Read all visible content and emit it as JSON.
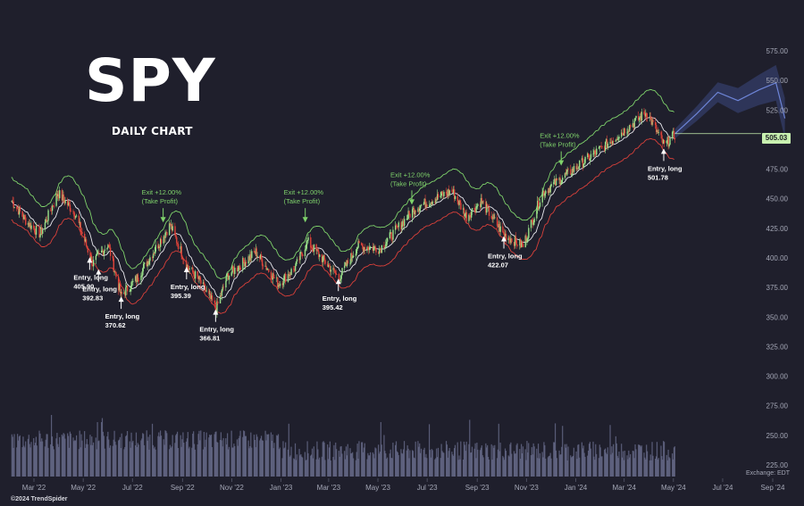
{
  "header": {
    "title": "SPY",
    "subtitle": "DAILY CHART"
  },
  "footer": {
    "copyright": "©2024 TrendSpider",
    "exchange": "Exchange: EDT"
  },
  "price_tag": "505.03",
  "colors": {
    "background": "#1f1f2c",
    "up": "#9be28a",
    "down": "#e0443a",
    "upper_band": "#7fd36b",
    "lower_band": "#d8403a",
    "mid_line": "#e8e8ee",
    "projection": "#4a5fb0",
    "volume": "#6e7191",
    "entry_label": "#ffffff",
    "exit_label": "#7fd36b"
  },
  "chart_data": {
    "type": "candlestick",
    "y_axis_ticks": [
      "575.00",
      "550.00",
      "525.00",
      "500.00",
      "475.00",
      "450.00",
      "425.00",
      "400.00",
      "375.00",
      "350.00",
      "325.00",
      "300.00",
      "275.00",
      "250.00",
      "225.00"
    ],
    "x_axis_ticks": [
      "Mar '22",
      "May '22",
      "Jul '22",
      "Sep '22",
      "Nov '22",
      "Jan '23",
      "Mar '23",
      "May '23",
      "Jul '23",
      "Sep '23",
      "Nov '23",
      "Jan '24",
      "Mar '24",
      "May '24",
      "Jul '24",
      "Sep '24"
    ],
    "price_path": [
      {
        "date": "2022-02-01",
        "close": 448
      },
      {
        "date": "2022-02-20",
        "close": 430
      },
      {
        "date": "2022-03-08",
        "close": 420
      },
      {
        "date": "2022-03-30",
        "close": 455
      },
      {
        "date": "2022-04-20",
        "close": 438
      },
      {
        "date": "2022-05-12",
        "close": 395
      },
      {
        "date": "2022-05-31",
        "close": 412
      },
      {
        "date": "2022-06-16",
        "close": 368
      },
      {
        "date": "2022-07-05",
        "close": 382
      },
      {
        "date": "2022-08-16",
        "close": 428
      },
      {
        "date": "2022-09-06",
        "close": 393
      },
      {
        "date": "2022-09-20",
        "close": 382
      },
      {
        "date": "2022-10-12",
        "close": 357
      },
      {
        "date": "2022-10-26",
        "close": 385
      },
      {
        "date": "2022-11-30",
        "close": 405
      },
      {
        "date": "2022-12-28",
        "close": 378
      },
      {
        "date": "2023-01-18",
        "close": 392
      },
      {
        "date": "2023-02-02",
        "close": 414
      },
      {
        "date": "2023-03-13",
        "close": 383
      },
      {
        "date": "2023-04-05",
        "close": 410
      },
      {
        "date": "2023-05-03",
        "close": 408
      },
      {
        "date": "2023-06-15",
        "close": 442
      },
      {
        "date": "2023-07-31",
        "close": 457
      },
      {
        "date": "2023-08-18",
        "close": 435
      },
      {
        "date": "2023-09-05",
        "close": 448
      },
      {
        "date": "2023-10-03",
        "close": 420
      },
      {
        "date": "2023-10-27",
        "close": 410
      },
      {
        "date": "2023-11-20",
        "close": 455
      },
      {
        "date": "2023-12-29",
        "close": 475
      },
      {
        "date": "2024-02-15",
        "close": 500
      },
      {
        "date": "2024-03-28",
        "close": 523
      },
      {
        "date": "2024-04-19",
        "close": 495
      },
      {
        "date": "2024-05-03",
        "close": 505
      }
    ],
    "projection_path": [
      {
        "date": "2024-05-03",
        "close": 505
      },
      {
        "date": "2024-05-30",
        "close": 522
      },
      {
        "date": "2024-06-25",
        "close": 540
      },
      {
        "date": "2024-07-20",
        "close": 533
      },
      {
        "date": "2024-08-15",
        "close": 542
      },
      {
        "date": "2024-09-05",
        "close": 548
      },
      {
        "date": "2024-09-16",
        "close": 518
      }
    ],
    "annotations": [
      {
        "kind": "entry",
        "label": "Entry, long",
        "value": "405.90",
        "date": "2022-05-09",
        "price": 402
      },
      {
        "kind": "entry",
        "label": "Entry, long",
        "value": "392.83",
        "date": "2022-05-20",
        "price": 392
      },
      {
        "kind": "entry",
        "label": "Entry, long",
        "value": "370.62",
        "date": "2022-06-17",
        "price": 369
      },
      {
        "kind": "entry",
        "label": "Entry, long",
        "value": "395.39",
        "date": "2022-09-06",
        "price": 394
      },
      {
        "kind": "entry",
        "label": "Entry, long",
        "value": "366.81",
        "date": "2022-10-12",
        "price": 358
      },
      {
        "kind": "entry",
        "label": "Entry, long",
        "value": "395.42",
        "date": "2023-03-13",
        "price": 384
      },
      {
        "kind": "entry",
        "label": "Entry, long",
        "value": "422.07",
        "date": "2023-10-04",
        "price": 420
      },
      {
        "kind": "entry",
        "label": "Entry, long",
        "value": "501.78",
        "date": "2024-04-19",
        "price": 494
      },
      {
        "kind": "exit",
        "label": "Exit +12.00%",
        "note": "(Take Profit)",
        "date": "2022-08-08",
        "price": 427
      },
      {
        "kind": "exit",
        "label": "Exit +12.00%",
        "note": "(Take Profit)",
        "date": "2023-01-31",
        "price": 427
      },
      {
        "kind": "exit",
        "label": "Exit +12.00%",
        "note": "(Take Profit)",
        "date": "2023-06-12",
        "price": 442
      },
      {
        "kind": "exit",
        "label": "Exit +12.00%",
        "note": "(Take Profit)",
        "date": "2023-12-14",
        "price": 475
      }
    ],
    "current_price": "505.03"
  }
}
